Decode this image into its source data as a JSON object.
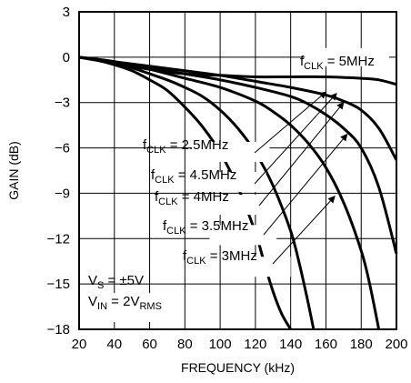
{
  "chart_data": {
    "type": "line",
    "xlabel": "FREQUENCY (kHz)",
    "ylabel": "GAIN (dB)",
    "xlim": [
      20,
      200
    ],
    "ylim": [
      -18,
      3
    ],
    "x_ticks": [
      "20",
      "40",
      "60",
      "80",
      "100",
      "120",
      "140",
      "160",
      "180",
      "200"
    ],
    "y_ticks": [
      "3",
      "0",
      "−3",
      "−6",
      "−9",
      "−12",
      "−15",
      "−18"
    ],
    "grid": true,
    "conditions": {
      "vs_main": "V",
      "vs_sub": "S",
      "vs_value": " = ±5V",
      "vin_main": "V",
      "vin_sub": "IN",
      "vin_value": " = 2V",
      "vin_unit_sub": "RMS"
    },
    "series": [
      {
        "name": "fCLK = 2.5MHz",
        "label_main": "f",
        "label_sub": "CLK",
        "label_value": " = 2.5MHz",
        "x": [
          20,
          30,
          40,
          50,
          60,
          70,
          80,
          90,
          100,
          110,
          120,
          125,
          130,
          135,
          140
        ],
        "y": [
          0,
          -0.2,
          -0.5,
          -0.9,
          -1.5,
          -2.2,
          -3.3,
          -4.6,
          -6.3,
          -8.6,
          -11.6,
          -13.6,
          -15.5,
          -17.0,
          -18.0
        ]
      },
      {
        "name": "fCLK = 3MHz",
        "label_main": "f",
        "label_sub": "CLK",
        "label_value": " = 3MHz",
        "x": [
          20,
          30,
          40,
          50,
          60,
          70,
          80,
          90,
          100,
          110,
          120,
          130,
          140,
          145,
          150,
          153
        ],
        "y": [
          0,
          -0.2,
          -0.4,
          -0.7,
          -1.1,
          -1.5,
          -2.0,
          -2.6,
          -3.5,
          -4.7,
          -6.3,
          -8.5,
          -11.5,
          -13.7,
          -16.3,
          -18.0
        ]
      },
      {
        "name": "fCLK = 3.5MHz",
        "label_main": "f",
        "label_sub": "CLK",
        "label_value": " = 3.5MHz",
        "x": [
          20,
          40,
          60,
          80,
          100,
          120,
          130,
          140,
          150,
          160,
          170,
          180,
          185,
          190
        ],
        "y": [
          0,
          -0.3,
          -0.8,
          -1.4,
          -2.0,
          -2.9,
          -3.6,
          -4.5,
          -5.7,
          -7.3,
          -9.6,
          -12.8,
          -15.1,
          -18.0
        ]
      },
      {
        "name": "fCLK = 4MHz",
        "label_main": "f",
        "label_sub": "CLK",
        "label_value": " = 4MHz",
        "x": [
          20,
          40,
          60,
          80,
          100,
          120,
          140,
          150,
          160,
          170,
          180,
          190,
          200
        ],
        "y": [
          0,
          -0.3,
          -0.7,
          -1.1,
          -1.5,
          -2.0,
          -2.6,
          -3.1,
          -3.8,
          -4.7,
          -6.0,
          -8.6,
          -13.0
        ]
      },
      {
        "name": "fCLK = 4.5MHz",
        "label_main": "f",
        "label_sub": "CLK",
        "label_value": " = 4.5MHz",
        "x": [
          20,
          40,
          60,
          80,
          100,
          120,
          140,
          160,
          170,
          180,
          190,
          200
        ],
        "y": [
          0,
          -0.3,
          -0.6,
          -0.9,
          -1.2,
          -1.6,
          -2.0,
          -2.5,
          -2.9,
          -3.5,
          -4.7,
          -6.8
        ]
      },
      {
        "name": "fCLK = 5MHz",
        "label_main": "f",
        "label_sub": "CLK",
        "label_value": " = 5MHz",
        "x": [
          20,
          40,
          60,
          80,
          100,
          120,
          140,
          160,
          180,
          190,
          200
        ],
        "y": [
          0,
          -0.4,
          -0.8,
          -1.1,
          -1.2,
          -1.3,
          -1.3,
          -1.3,
          -1.4,
          -1.5,
          -1.8
        ]
      }
    ]
  }
}
